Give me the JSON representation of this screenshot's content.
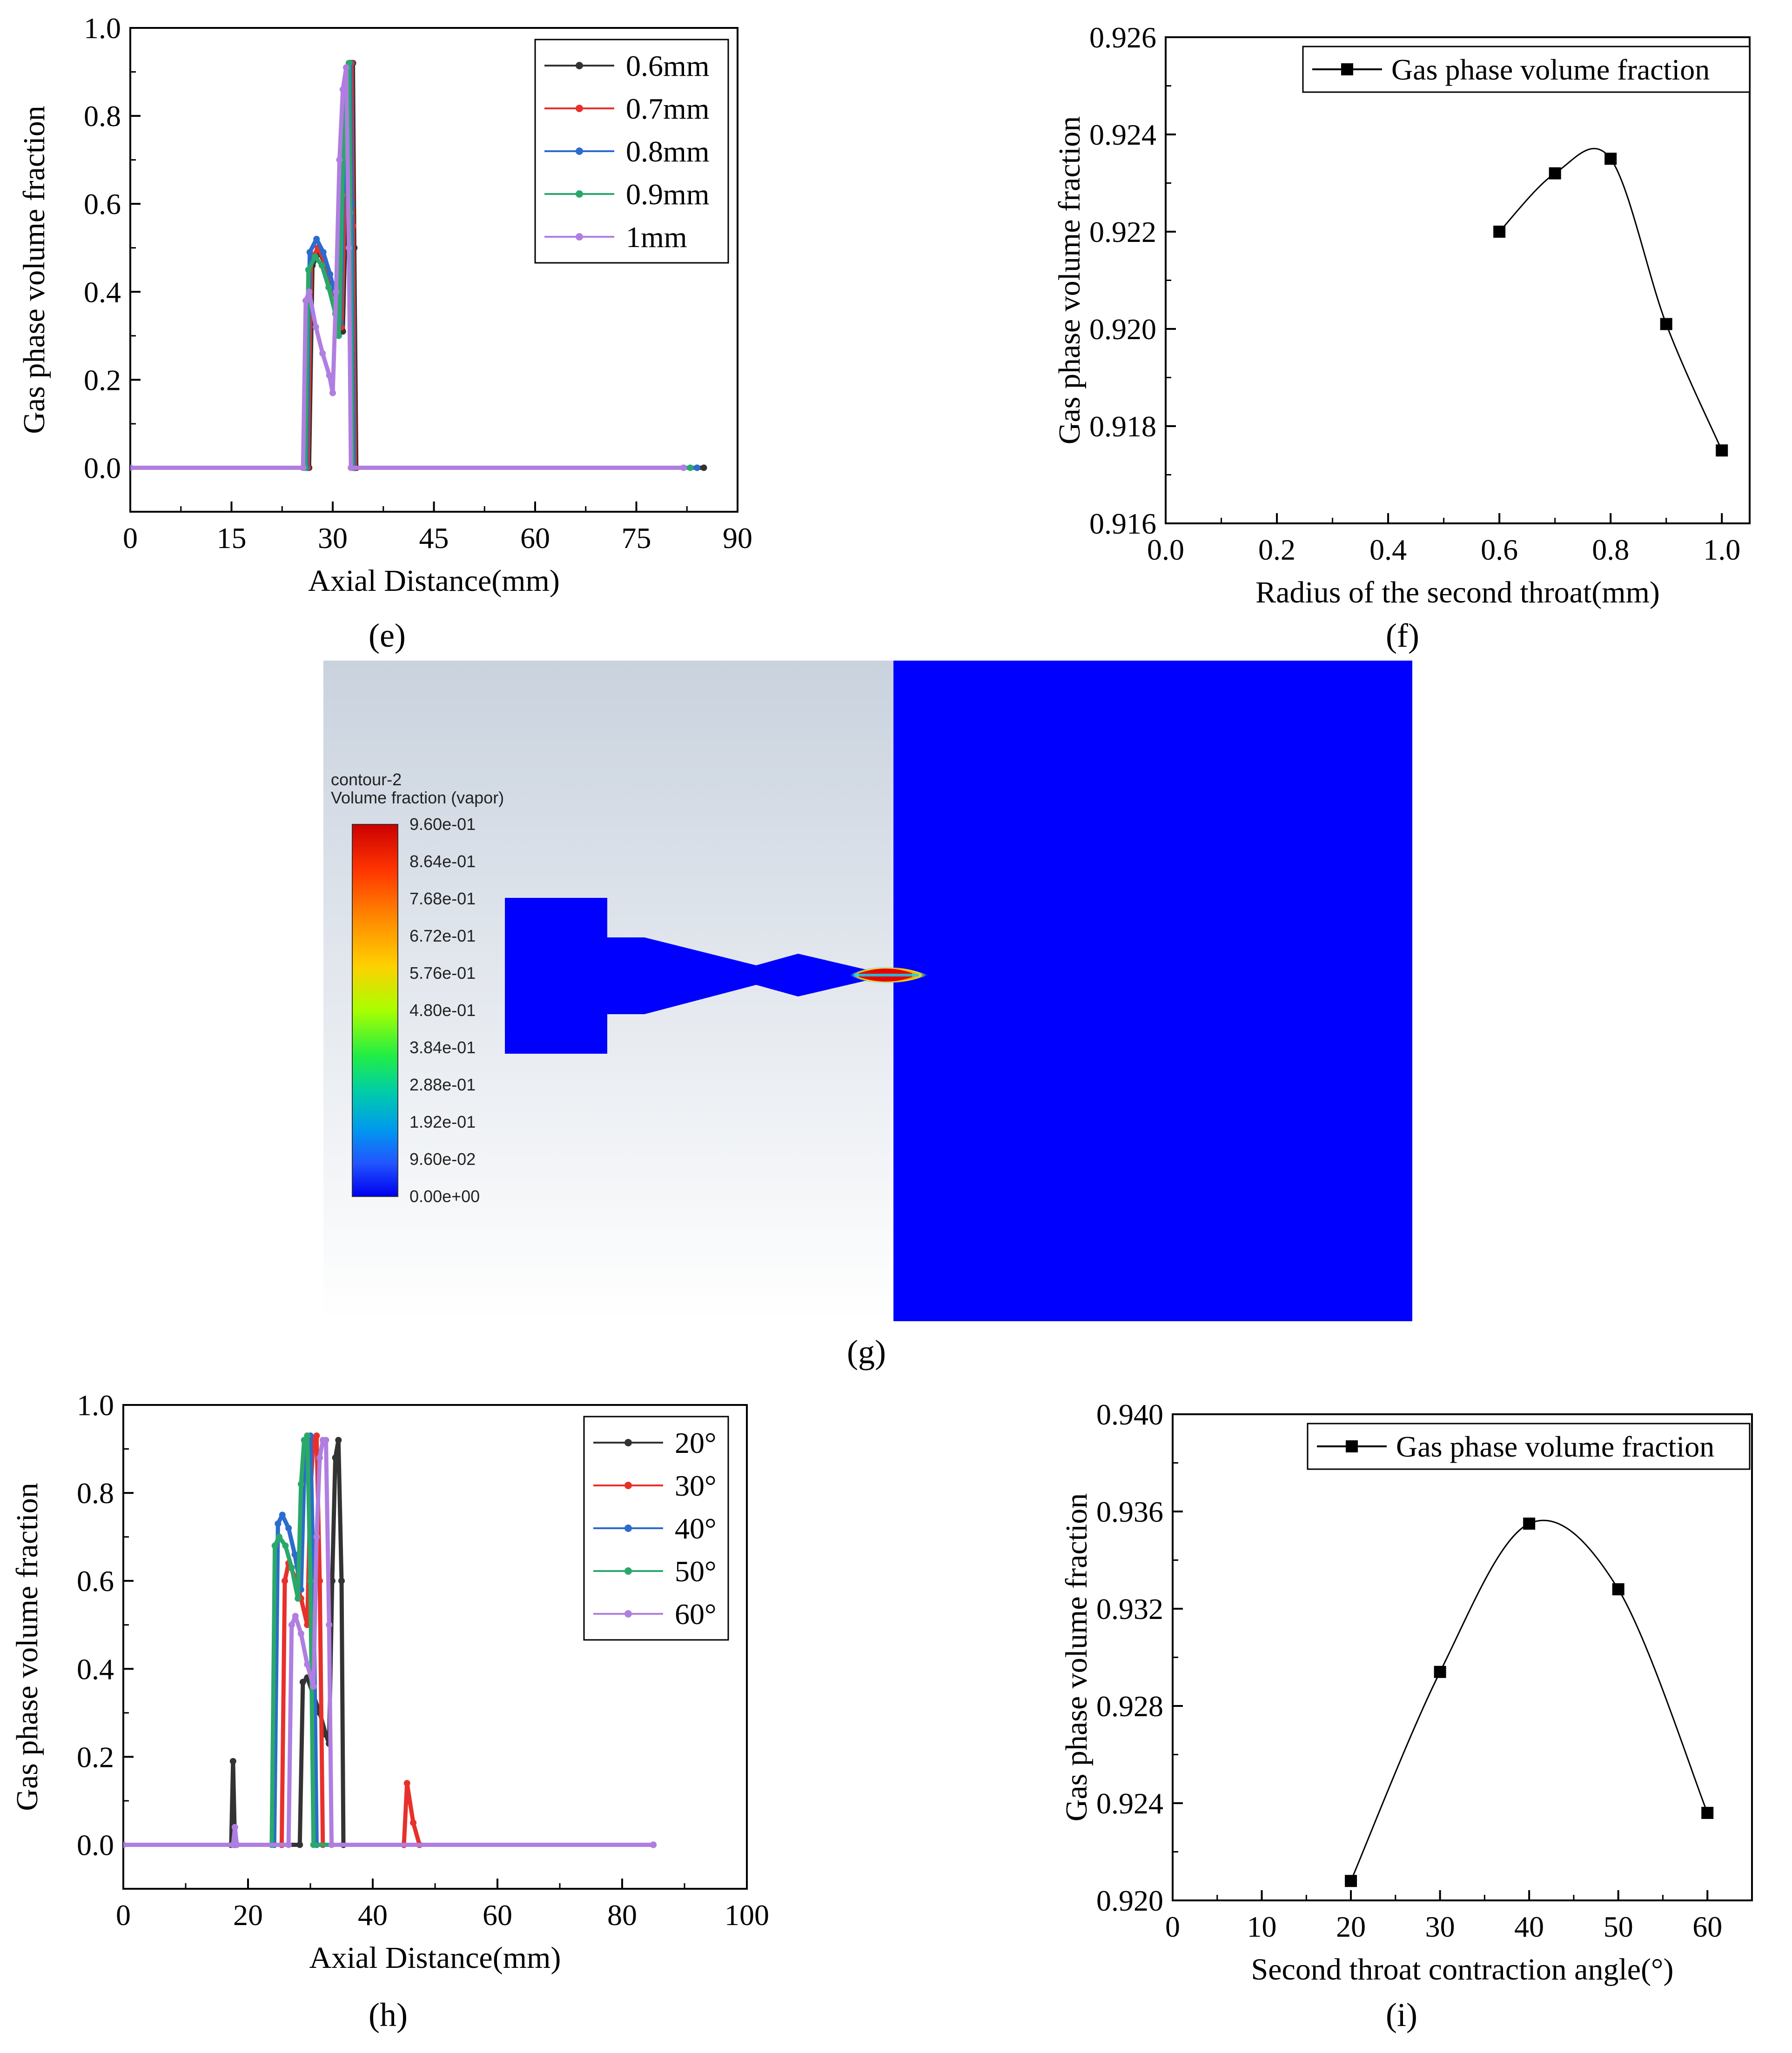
{
  "panel_labels": {
    "e": "(e)",
    "f": "(f)",
    "g": "(g)",
    "h": "(h)",
    "i": "(i)"
  },
  "contour": {
    "title": "contour-2",
    "quantity": "Volume fraction (vapor)",
    "ticks": [
      "9.60e-01",
      "8.64e-01",
      "7.68e-01",
      "6.72e-01",
      "5.76e-01",
      "4.80e-01",
      "3.84e-01",
      "2.88e-01",
      "1.92e-01",
      "9.60e-02",
      "0.00e+00"
    ],
    "colormap": [
      "#ff0000",
      "#ff5000",
      "#ff8c00",
      "#ffd200",
      "#c8ff00",
      "#64ff00",
      "#00ff78",
      "#00e6c8",
      "#00a0ff",
      "#0050ff",
      "#0000ff"
    ]
  },
  "chart_data": [
    {
      "id": "e",
      "type": "line",
      "xlabel": "Axial Distance(mm)",
      "ylabel": "Gas phase volume fraction",
      "xlim": [
        0,
        90
      ],
      "ylim": [
        -0.1,
        1.0
      ],
      "xticks": [
        0,
        15,
        30,
        45,
        60,
        75,
        90
      ],
      "yticks": [
        0.0,
        0.2,
        0.4,
        0.6,
        0.8,
        1.0
      ],
      "legend_position": "top-right",
      "series": [
        {
          "name": "0.6mm",
          "color": "#333333",
          "x": [
            0,
            26.5,
            27,
            28,
            29,
            30,
            31,
            31.5,
            32,
            32.5,
            33,
            33.2,
            33.5,
            85
          ],
          "y": [
            0,
            0,
            0.46,
            0.49,
            0.46,
            0.41,
            0.36,
            0.31,
            0.6,
            0.85,
            0.92,
            0.5,
            0,
            0
          ]
        },
        {
          "name": "0.7mm",
          "color": "#e8302a",
          "x": [
            0,
            26.3,
            26.8,
            27.8,
            28.8,
            29.8,
            30.8,
            31.3,
            31.8,
            32.3,
            32.8,
            33,
            33.3,
            84
          ],
          "y": [
            0,
            0,
            0.47,
            0.5,
            0.47,
            0.42,
            0.37,
            0.32,
            0.62,
            0.86,
            0.92,
            0.55,
            0,
            0
          ]
        },
        {
          "name": "0.8mm",
          "color": "#2b6ccc",
          "x": [
            0,
            26.1,
            26.6,
            27.6,
            28.6,
            29.6,
            30.6,
            31.1,
            31.6,
            32.1,
            32.6,
            32.8,
            33.1,
            84
          ],
          "y": [
            0,
            0,
            0.49,
            0.52,
            0.49,
            0.44,
            0.38,
            0.33,
            0.64,
            0.87,
            0.92,
            0.6,
            0,
            0
          ]
        },
        {
          "name": "0.9mm",
          "color": "#2aa86a",
          "x": [
            0,
            25.9,
            26.4,
            27.4,
            28.4,
            29.4,
            30.4,
            30.9,
            31.4,
            31.9,
            32.4,
            32.6,
            32.9,
            83
          ],
          "y": [
            0,
            0,
            0.45,
            0.48,
            0.46,
            0.41,
            0.35,
            0.3,
            0.62,
            0.86,
            0.92,
            0.58,
            0,
            0
          ]
        },
        {
          "name": "1mm",
          "color": "#b07ee0",
          "x": [
            0,
            25.6,
            26,
            26.5,
            27.5,
            28.5,
            29.5,
            30,
            30.5,
            31,
            31.5,
            32,
            32.4,
            32.7,
            82
          ],
          "y": [
            0,
            0,
            0.38,
            0.4,
            0.32,
            0.26,
            0.21,
            0.17,
            0.4,
            0.7,
            0.86,
            0.91,
            0.5,
            0,
            0
          ]
        }
      ]
    },
    {
      "id": "f",
      "type": "line",
      "xlabel": "Radius of the second throat(mm)",
      "ylabel": "Gas phase volume fraction",
      "xlim": [
        0.0,
        1.05
      ],
      "ylim": [
        0.916,
        0.926
      ],
      "xticks": [
        0.0,
        0.2,
        0.4,
        0.6,
        0.8,
        1.0
      ],
      "yticks": [
        0.916,
        0.918,
        0.92,
        0.922,
        0.924,
        0.926
      ],
      "legend_position": "top-right",
      "series": [
        {
          "name": "Gas phase volume fraction",
          "color": "#000000",
          "x": [
            0.6,
            0.7,
            0.8,
            0.9,
            1.0
          ],
          "y": [
            0.922,
            0.9232,
            0.9235,
            0.9201,
            0.9175
          ]
        }
      ]
    },
    {
      "id": "h",
      "type": "line",
      "xlabel": "Axial Distance(mm)",
      "ylabel": "Gas phase volume fraction",
      "xlim": [
        0,
        100
      ],
      "ylim": [
        -0.1,
        1.0
      ],
      "xticks": [
        0,
        20,
        40,
        60,
        80,
        100
      ],
      "yticks": [
        0.0,
        0.2,
        0.4,
        0.6,
        0.8,
        1.0
      ],
      "legend_position": "top-right",
      "series": [
        {
          "name": "20°",
          "color": "#333333",
          "x": [
            0,
            17.3,
            17.6,
            17.9,
            28.3,
            28.8,
            29.5,
            30.5,
            31.5,
            32.5,
            33,
            33.5,
            34,
            34.5,
            35,
            35.3,
            85
          ],
          "y": [
            0,
            0,
            0.19,
            0,
            0,
            0.37,
            0.38,
            0.34,
            0.3,
            0.25,
            0.23,
            0.6,
            0.88,
            0.92,
            0.6,
            0,
            0
          ]
        },
        {
          "name": "30°",
          "color": "#e8302a",
          "x": [
            0,
            25.4,
            25.9,
            26.5,
            27.5,
            28.5,
            29.5,
            30,
            30.5,
            31,
            31.5,
            32,
            45,
            45.5,
            46.5,
            47.5,
            85
          ],
          "y": [
            0,
            0,
            0.6,
            0.64,
            0.61,
            0.56,
            0.5,
            0.8,
            0.92,
            0.93,
            0.6,
            0,
            0,
            0.14,
            0.05,
            0,
            0
          ]
        },
        {
          "name": "40°",
          "color": "#2b6ccc",
          "x": [
            0,
            24.2,
            24.8,
            25.5,
            26.5,
            27.5,
            28.5,
            29,
            29.5,
            30,
            30.5,
            31,
            85
          ],
          "y": [
            0,
            0,
            0.73,
            0.75,
            0.72,
            0.66,
            0.58,
            0.84,
            0.92,
            0.93,
            0.6,
            0,
            0
          ]
        },
        {
          "name": "50°",
          "color": "#2aa86a",
          "x": [
            0,
            23.8,
            24.3,
            25,
            26,
            27,
            28,
            28.5,
            29,
            29.5,
            30,
            30.5,
            85
          ],
          "y": [
            0,
            0,
            0.68,
            0.7,
            0.68,
            0.63,
            0.56,
            0.82,
            0.92,
            0.93,
            0.6,
            0,
            0
          ]
        },
        {
          "name": "60°",
          "color": "#b07ee0",
          "x": [
            0,
            17.6,
            17.9,
            18.2,
            26.5,
            27,
            27.6,
            28.5,
            29.5,
            30.5,
            31,
            31.5,
            32,
            32.5,
            33,
            33.4,
            85
          ],
          "y": [
            0,
            0,
            0.04,
            0,
            0,
            0.5,
            0.52,
            0.48,
            0.41,
            0.36,
            0.7,
            0.88,
            0.92,
            0.92,
            0.5,
            0,
            0
          ]
        }
      ]
    },
    {
      "id": "i",
      "type": "line",
      "xlabel": "Second throat contraction angle(°)",
      "ylabel": "Gas phase volume fraction",
      "xlim": [
        0,
        65
      ],
      "ylim": [
        0.92,
        0.94
      ],
      "xticks": [
        0,
        10,
        20,
        30,
        40,
        50,
        60
      ],
      "yticks": [
        0.92,
        0.924,
        0.928,
        0.932,
        0.936,
        0.94
      ],
      "legend_position": "top-right",
      "series": [
        {
          "name": "Gas phase volume fraction",
          "color": "#000000",
          "x": [
            20,
            30,
            40,
            50,
            60
          ],
          "y": [
            0.9208,
            0.9294,
            0.9355,
            0.9328,
            0.9236
          ]
        }
      ]
    }
  ]
}
